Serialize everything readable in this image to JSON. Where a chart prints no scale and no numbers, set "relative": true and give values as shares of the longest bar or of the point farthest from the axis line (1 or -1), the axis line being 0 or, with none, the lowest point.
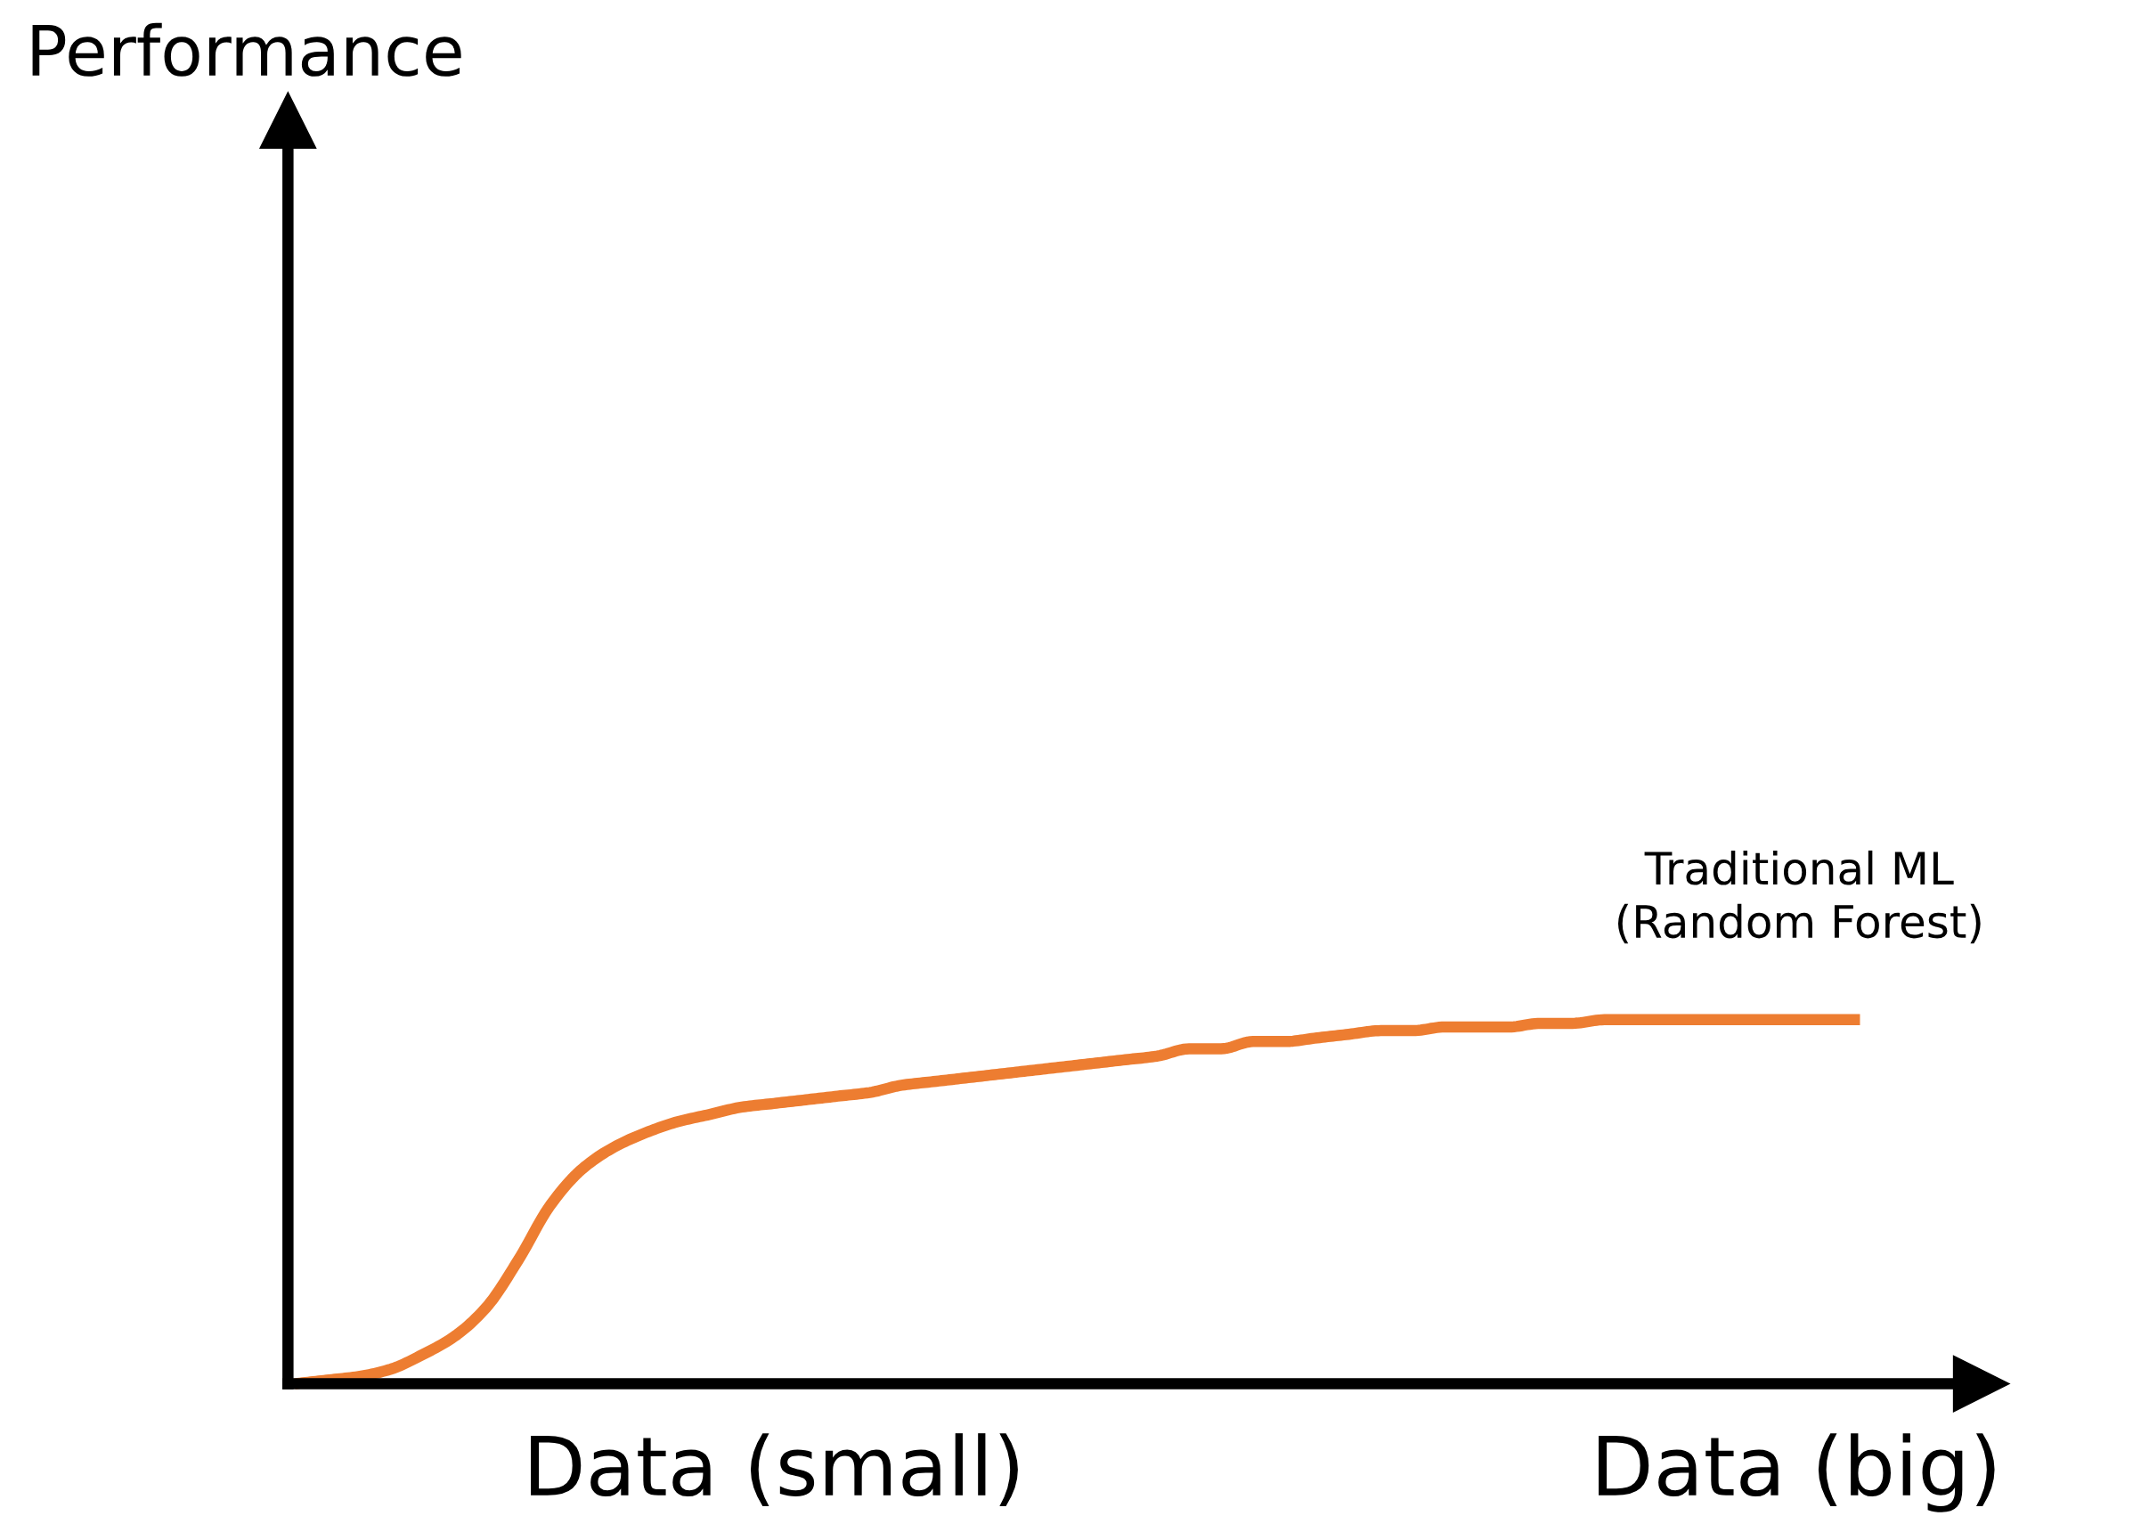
{
  "chart_data": {
    "type": "line",
    "relative": true,
    "annotations": [
      "Performance"
    ],
    "tick_labels": "x",
    "grid": false,
    "marker": "none",
    "line_style": "solid",
    "categories": [
      null,
      null,
      null,
      null,
      null,
      null,
      null,
      null,
      null,
      null,
      null,
      null,
      null,
      null,
      null,
      "Data (small)",
      null,
      null,
      null,
      null,
      null,
      null,
      null,
      null,
      null,
      null,
      null,
      null,
      null,
      null,
      null,
      null,
      null,
      null,
      null,
      null,
      null,
      null,
      null,
      null,
      null,
      null,
      null,
      null,
      null,
      null,
      null,
      "Data (big)",
      null,
      null
    ],
    "series": [
      {
        "name": "Traditional ML\n(Random Forest)",
        "color": "#ed7d31",
        "values": [
          0.0,
          0.01,
          0.02,
          0.04,
          0.08,
          0.13,
          0.21,
          0.34,
          0.49,
          0.59,
          0.65,
          0.69,
          0.72,
          0.74,
          0.76,
          0.77,
          0.78,
          0.79,
          0.8,
          0.82,
          0.83,
          0.84,
          0.85,
          0.86,
          0.87,
          0.88,
          0.89,
          0.9,
          0.92,
          0.92,
          0.94,
          0.94,
          0.95,
          0.96,
          0.97,
          0.97,
          0.98,
          0.98,
          0.98,
          0.99,
          0.99,
          1.0,
          1.0,
          1.0,
          1.0,
          1.0,
          1.0,
          1.0,
          1.0,
          1.0
        ]
      }
    ]
  }
}
